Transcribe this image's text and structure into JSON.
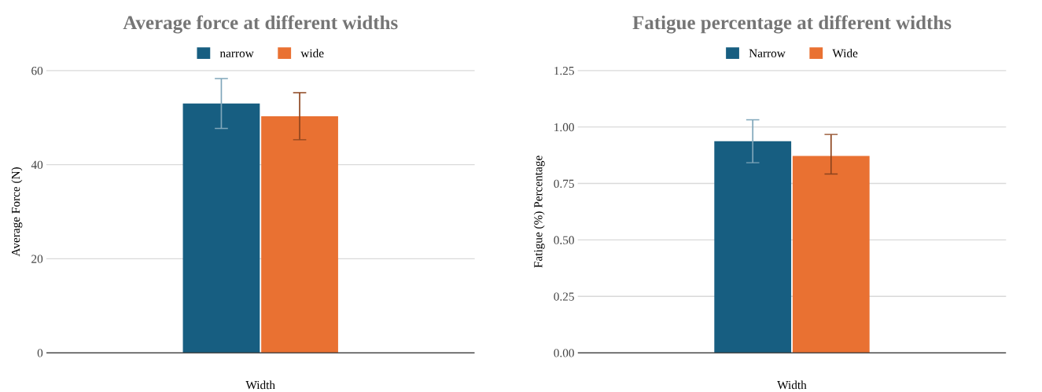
{
  "chart_data": [
    {
      "type": "bar",
      "title": "Average force at different widths",
      "xlabel": "Width",
      "ylabel": "Average Force (N)",
      "categories": [
        null
      ],
      "series": [
        {
          "name": "narrow",
          "color": "#175e81",
          "values": [
            53.0
          ],
          "errors": [
            5.3
          ]
        },
        {
          "name": "wide",
          "color": "#e97132",
          "values": [
            50.3
          ],
          "errors": [
            5.0
          ]
        }
      ],
      "ylim": [
        0,
        60
      ],
      "yticks": [
        0,
        20,
        40,
        60
      ],
      "grid": "y",
      "legend": "top"
    },
    {
      "type": "bar",
      "title": "Fatigue percentage at different widths",
      "xlabel": "Width",
      "ylabel": "Fatigue (%) Percentage",
      "categories": [
        null
      ],
      "series": [
        {
          "name": "Narrow",
          "color": "#175e81",
          "values": [
            0.937
          ],
          "errors": [
            0.095
          ]
        },
        {
          "name": "Wide",
          "color": "#e97132",
          "values": [
            0.872
          ],
          "errors": [
            [
              0.792,
              0.967
            ]
          ]
        }
      ],
      "ylim": [
        0,
        1.25
      ],
      "yticks": [
        {
          "value": 0,
          "label": "0.00"
        },
        {
          "value": 0.25,
          "label": "0.25"
        },
        {
          "value": 0.5,
          "label": "0.50"
        },
        {
          "value": 0.75,
          "label": "0.75"
        },
        {
          "value": 1,
          "label": "1.00"
        },
        {
          "value": 1.25,
          "label": "1.25"
        }
      ],
      "grid": "y",
      "legend": "top"
    }
  ]
}
